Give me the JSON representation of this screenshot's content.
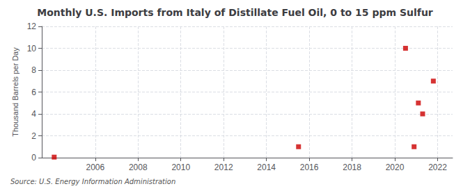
{
  "chart_data": {
    "type": "scatter",
    "title": "Monthly U.S. Imports from Italy of Distillate Fuel Oil, 0 to 15 ppm Sulfur",
    "ylabel": "Thousand Barrels per Day",
    "source": "Source: U.S. Energy Information Administration",
    "x": [
      2004.08,
      2015.5,
      2020.5,
      2021.1,
      2021.3,
      2020.9,
      2021.8
    ],
    "values": [
      0.05,
      1.0,
      10.0,
      5.0,
      4.0,
      1.0,
      7.0
    ],
    "color": "#cc0000",
    "marker": "square",
    "xlim": [
      2003.5,
      2022.7
    ],
    "ylim": [
      0,
      12
    ],
    "xticks": [
      2006,
      2008,
      2010,
      2012,
      2014,
      2016,
      2018,
      2020,
      2022
    ],
    "yticks": [
      0,
      2,
      4,
      6,
      8,
      10,
      12
    ],
    "grid": true
  }
}
